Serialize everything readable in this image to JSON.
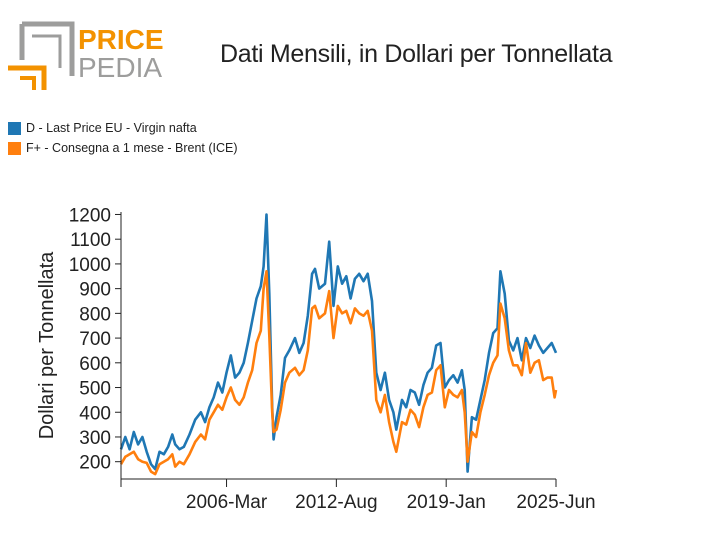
{
  "logo": {
    "line1": "PRICE",
    "line2": "PEDIA",
    "accent_color": "#f39200",
    "gray_color": "#9d9d9c"
  },
  "chart_data": {
    "type": "line",
    "title": "Dati Mensili, in Dollari per Tonnellata",
    "ylabel": "Dollari per Tonnellata",
    "xlabel": "",
    "ylim": [
      130,
      1210
    ],
    "yticks": [
      200,
      300,
      400,
      500,
      600,
      700,
      800,
      900,
      1000,
      1100,
      1200
    ],
    "xlim": [
      "2000-01",
      "2025-06"
    ],
    "xticks": [
      {
        "date": "2006-03",
        "label": "2006-Mar"
      },
      {
        "date": "2012-08",
        "label": "2012-Aug"
      },
      {
        "date": "2019-01",
        "label": "2019-Jan"
      },
      {
        "date": "2025-06",
        "label": "2025-Jun"
      }
    ],
    "legend_position": "top-left",
    "series": [
      {
        "name": "D - Last Price EU - Virgin nafta",
        "color": "#1f77b4",
        "points": [
          [
            "2000-01",
            250
          ],
          [
            "2000-04",
            300
          ],
          [
            "2000-07",
            250
          ],
          [
            "2000-10",
            320
          ],
          [
            "2001-01",
            270
          ],
          [
            "2001-04",
            300
          ],
          [
            "2001-07",
            240
          ],
          [
            "2001-10",
            190
          ],
          [
            "2002-01",
            170
          ],
          [
            "2002-04",
            240
          ],
          [
            "2002-07",
            230
          ],
          [
            "2002-10",
            260
          ],
          [
            "2003-01",
            310
          ],
          [
            "2003-03",
            270
          ],
          [
            "2003-06",
            250
          ],
          [
            "2003-09",
            260
          ],
          [
            "2004-01",
            310
          ],
          [
            "2004-05",
            370
          ],
          [
            "2004-09",
            400
          ],
          [
            "2004-12",
            360
          ],
          [
            "2005-03",
            420
          ],
          [
            "2005-06",
            460
          ],
          [
            "2005-09",
            520
          ],
          [
            "2005-12",
            480
          ],
          [
            "2006-03",
            560
          ],
          [
            "2006-06",
            630
          ],
          [
            "2006-09",
            540
          ],
          [
            "2006-12",
            560
          ],
          [
            "2007-03",
            600
          ],
          [
            "2007-06",
            680
          ],
          [
            "2007-09",
            770
          ],
          [
            "2007-12",
            860
          ],
          [
            "2008-03",
            910
          ],
          [
            "2008-05",
            990
          ],
          [
            "2008-07",
            1200
          ],
          [
            "2008-09",
            880
          ],
          [
            "2008-11",
            420
          ],
          [
            "2008-12",
            290
          ],
          [
            "2009-02",
            380
          ],
          [
            "2009-05",
            470
          ],
          [
            "2009-08",
            620
          ],
          [
            "2009-11",
            650
          ],
          [
            "2010-03",
            700
          ],
          [
            "2010-06",
            640
          ],
          [
            "2010-09",
            680
          ],
          [
            "2010-12",
            790
          ],
          [
            "2011-03",
            960
          ],
          [
            "2011-05",
            980
          ],
          [
            "2011-08",
            900
          ],
          [
            "2011-12",
            920
          ],
          [
            "2012-03",
            1090
          ],
          [
            "2012-06",
            830
          ],
          [
            "2012-09",
            990
          ],
          [
            "2012-12",
            920
          ],
          [
            "2013-03",
            950
          ],
          [
            "2013-06",
            860
          ],
          [
            "2013-09",
            940
          ],
          [
            "2013-12",
            960
          ],
          [
            "2014-03",
            930
          ],
          [
            "2014-06",
            960
          ],
          [
            "2014-09",
            850
          ],
          [
            "2014-12",
            560
          ],
          [
            "2015-03",
            490
          ],
          [
            "2015-06",
            560
          ],
          [
            "2015-09",
            450
          ],
          [
            "2015-12",
            400
          ],
          [
            "2016-02",
            330
          ],
          [
            "2016-06",
            450
          ],
          [
            "2016-09",
            420
          ],
          [
            "2016-12",
            490
          ],
          [
            "2017-03",
            480
          ],
          [
            "2017-06",
            430
          ],
          [
            "2017-09",
            510
          ],
          [
            "2017-12",
            560
          ],
          [
            "2018-03",
            580
          ],
          [
            "2018-06",
            670
          ],
          [
            "2018-09",
            680
          ],
          [
            "2018-12",
            500
          ],
          [
            "2019-03",
            530
          ],
          [
            "2019-06",
            550
          ],
          [
            "2019-09",
            520
          ],
          [
            "2019-12",
            570
          ],
          [
            "2020-02",
            490
          ],
          [
            "2020-04",
            160
          ],
          [
            "2020-07",
            380
          ],
          [
            "2020-10",
            370
          ],
          [
            "2021-01",
            450
          ],
          [
            "2021-04",
            530
          ],
          [
            "2021-07",
            640
          ],
          [
            "2021-10",
            720
          ],
          [
            "2022-01",
            740
          ],
          [
            "2022-03",
            970
          ],
          [
            "2022-06",
            880
          ],
          [
            "2022-09",
            690
          ],
          [
            "2022-12",
            650
          ],
          [
            "2023-03",
            700
          ],
          [
            "2023-06",
            610
          ],
          [
            "2023-09",
            700
          ],
          [
            "2023-12",
            660
          ],
          [
            "2024-03",
            710
          ],
          [
            "2024-06",
            670
          ],
          [
            "2024-09",
            640
          ],
          [
            "2024-12",
            660
          ],
          [
            "2025-03",
            680
          ],
          [
            "2025-06",
            640
          ]
        ]
      },
      {
        "name": "F+ - Consegna a 1 mese - Brent (ICE)",
        "color": "#ff7f0e",
        "points": [
          [
            "2000-01",
            190
          ],
          [
            "2000-04",
            220
          ],
          [
            "2000-07",
            230
          ],
          [
            "2000-10",
            240
          ],
          [
            "2001-01",
            210
          ],
          [
            "2001-04",
            200
          ],
          [
            "2001-07",
            195
          ],
          [
            "2001-10",
            160
          ],
          [
            "2002-01",
            150
          ],
          [
            "2002-04",
            190
          ],
          [
            "2002-07",
            200
          ],
          [
            "2002-10",
            210
          ],
          [
            "2003-01",
            230
          ],
          [
            "2003-03",
            180
          ],
          [
            "2003-06",
            200
          ],
          [
            "2003-09",
            190
          ],
          [
            "2004-01",
            230
          ],
          [
            "2004-05",
            280
          ],
          [
            "2004-09",
            310
          ],
          [
            "2004-12",
            290
          ],
          [
            "2005-03",
            370
          ],
          [
            "2005-06",
            400
          ],
          [
            "2005-09",
            430
          ],
          [
            "2005-12",
            410
          ],
          [
            "2006-03",
            460
          ],
          [
            "2006-06",
            500
          ],
          [
            "2006-09",
            450
          ],
          [
            "2006-12",
            430
          ],
          [
            "2007-03",
            460
          ],
          [
            "2007-06",
            520
          ],
          [
            "2007-09",
            570
          ],
          [
            "2007-12",
            680
          ],
          [
            "2008-03",
            730
          ],
          [
            "2008-05",
            900
          ],
          [
            "2008-07",
            970
          ],
          [
            "2008-09",
            710
          ],
          [
            "2008-11",
            400
          ],
          [
            "2008-12",
            320
          ],
          [
            "2009-02",
            330
          ],
          [
            "2009-05",
            410
          ],
          [
            "2009-08",
            520
          ],
          [
            "2009-11",
            560
          ],
          [
            "2010-03",
            580
          ],
          [
            "2010-06",
            550
          ],
          [
            "2010-09",
            570
          ],
          [
            "2010-12",
            650
          ],
          [
            "2011-03",
            820
          ],
          [
            "2011-05",
            830
          ],
          [
            "2011-08",
            780
          ],
          [
            "2011-12",
            800
          ],
          [
            "2012-03",
            890
          ],
          [
            "2012-06",
            700
          ],
          [
            "2012-09",
            830
          ],
          [
            "2012-12",
            800
          ],
          [
            "2013-03",
            810
          ],
          [
            "2013-06",
            760
          ],
          [
            "2013-09",
            820
          ],
          [
            "2013-12",
            800
          ],
          [
            "2014-03",
            790
          ],
          [
            "2014-06",
            810
          ],
          [
            "2014-09",
            730
          ],
          [
            "2014-12",
            450
          ],
          [
            "2015-03",
            400
          ],
          [
            "2015-06",
            470
          ],
          [
            "2015-09",
            360
          ],
          [
            "2015-12",
            280
          ],
          [
            "2016-02",
            240
          ],
          [
            "2016-06",
            360
          ],
          [
            "2016-09",
            350
          ],
          [
            "2016-12",
            410
          ],
          [
            "2017-03",
            390
          ],
          [
            "2017-06",
            340
          ],
          [
            "2017-09",
            420
          ],
          [
            "2017-12",
            470
          ],
          [
            "2018-03",
            480
          ],
          [
            "2018-06",
            570
          ],
          [
            "2018-09",
            590
          ],
          [
            "2018-12",
            420
          ],
          [
            "2019-03",
            490
          ],
          [
            "2019-06",
            470
          ],
          [
            "2019-09",
            460
          ],
          [
            "2019-12",
            490
          ],
          [
            "2020-02",
            400
          ],
          [
            "2020-04",
            200
          ],
          [
            "2020-07",
            320
          ],
          [
            "2020-10",
            300
          ],
          [
            "2021-01",
            400
          ],
          [
            "2021-04",
            470
          ],
          [
            "2021-07",
            550
          ],
          [
            "2021-10",
            600
          ],
          [
            "2022-01",
            630
          ],
          [
            "2022-03",
            840
          ],
          [
            "2022-06",
            780
          ],
          [
            "2022-09",
            650
          ],
          [
            "2022-12",
            590
          ],
          [
            "2023-03",
            590
          ],
          [
            "2023-06",
            550
          ],
          [
            "2023-09",
            680
          ],
          [
            "2023-12",
            560
          ],
          [
            "2024-03",
            600
          ],
          [
            "2024-06",
            610
          ],
          [
            "2024-09",
            530
          ],
          [
            "2024-12",
            540
          ],
          [
            "2025-03",
            540
          ],
          [
            "2025-05",
            460
          ],
          [
            "2025-06",
            490
          ]
        ]
      }
    ]
  }
}
